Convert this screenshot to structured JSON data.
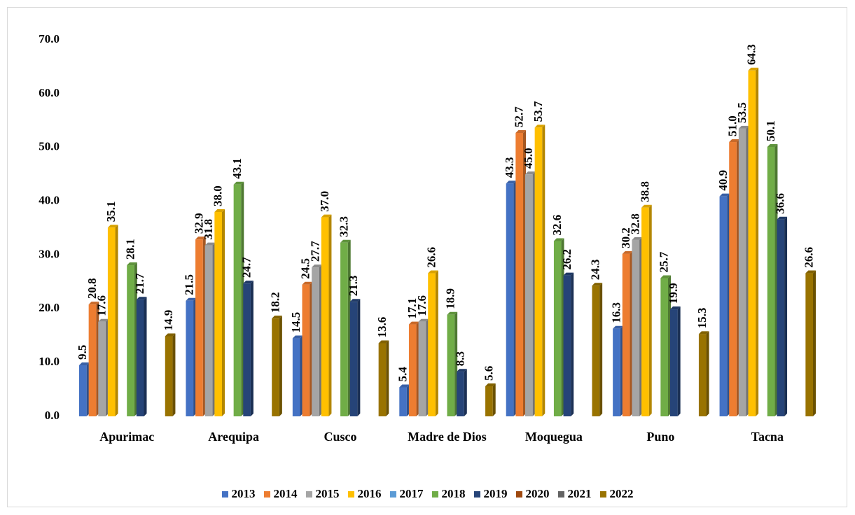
{
  "chart_data": {
    "type": "bar3d",
    "categories": [
      "Apurimac",
      "Arequipa",
      "Cusco",
      "Madre de Dios",
      "Moquegua",
      "Puno",
      "Tacna"
    ],
    "series": [
      {
        "name": "2013",
        "color": "#4472c4",
        "values": [
          9.5,
          21.5,
          14.5,
          5.4,
          43.3,
          16.3,
          40.9
        ],
        "value_labels": [
          "9.5",
          "21.5",
          "14.5",
          "5.4",
          "43.3",
          "16.3",
          "40.9"
        ]
      },
      {
        "name": "2014",
        "color": "#ed7d31",
        "values": [
          20.8,
          32.9,
          24.5,
          17.1,
          52.7,
          30.2,
          51.0
        ],
        "value_labels": [
          "20.8",
          "32.9",
          "24.5",
          "17.1",
          "52.7",
          "30.2",
          "51.0"
        ]
      },
      {
        "name": "2015",
        "color": "#a5a5a5",
        "values": [
          17.6,
          31.8,
          27.7,
          17.6,
          45.0,
          32.8,
          53.5
        ],
        "value_labels": [
          "17.6",
          "31.8",
          "27.7",
          "17.6",
          "45.0",
          "32.8",
          "53.5"
        ]
      },
      {
        "name": "2016",
        "color": "#ffc000",
        "values": [
          35.1,
          38.0,
          37.0,
          26.6,
          53.7,
          38.8,
          64.3
        ],
        "value_labels": [
          "35.1",
          "38.0",
          "37.0",
          "26.6",
          "53.7",
          "38.8",
          "64.3"
        ]
      },
      {
        "name": "2017",
        "color": "#5b9bd5",
        "values": [
          null,
          null,
          null,
          null,
          null,
          null,
          null
        ]
      },
      {
        "name": "2018",
        "color": "#70ad47",
        "values": [
          28.1,
          43.1,
          32.3,
          18.9,
          32.6,
          25.7,
          50.1
        ],
        "value_labels": [
          "28.1",
          "43.1",
          "32.3",
          "18.9",
          "32.6",
          "25.7",
          "50.1"
        ]
      },
      {
        "name": "2019",
        "color": "#264478",
        "values": [
          21.7,
          24.7,
          21.3,
          8.3,
          26.2,
          19.9,
          36.6
        ],
        "value_labels": [
          "21.7",
          "24.7",
          "21.3",
          "8.3",
          "26.2",
          "19.9",
          "36.6"
        ]
      },
      {
        "name": "2020",
        "color": "#9e480e",
        "values": [
          null,
          null,
          null,
          null,
          null,
          null,
          null
        ]
      },
      {
        "name": "2021",
        "color": "#636363",
        "values": [
          null,
          null,
          null,
          null,
          null,
          null,
          null
        ]
      },
      {
        "name": "2022",
        "color": "#997300",
        "values": [
          14.9,
          18.2,
          13.6,
          5.6,
          24.3,
          15.3,
          26.6
        ],
        "value_labels": [
          "14.9",
          "18.2",
          "13.6",
          "5.6",
          "24.3",
          "15.3",
          "26.6"
        ]
      }
    ],
    "ylim": [
      0,
      70
    ],
    "yticks": [
      {
        "value": 0,
        "label": "0.0"
      },
      {
        "value": 10,
        "label": "10.0"
      },
      {
        "value": 20,
        "label": "20.0"
      },
      {
        "value": 30,
        "label": "30.0"
      },
      {
        "value": 40,
        "label": "40.0"
      },
      {
        "value": 50,
        "label": "50.0"
      },
      {
        "value": 60,
        "label": "60.0"
      },
      {
        "value": 70,
        "label": "70.0"
      }
    ],
    "grid": false,
    "legend": "bottom"
  }
}
